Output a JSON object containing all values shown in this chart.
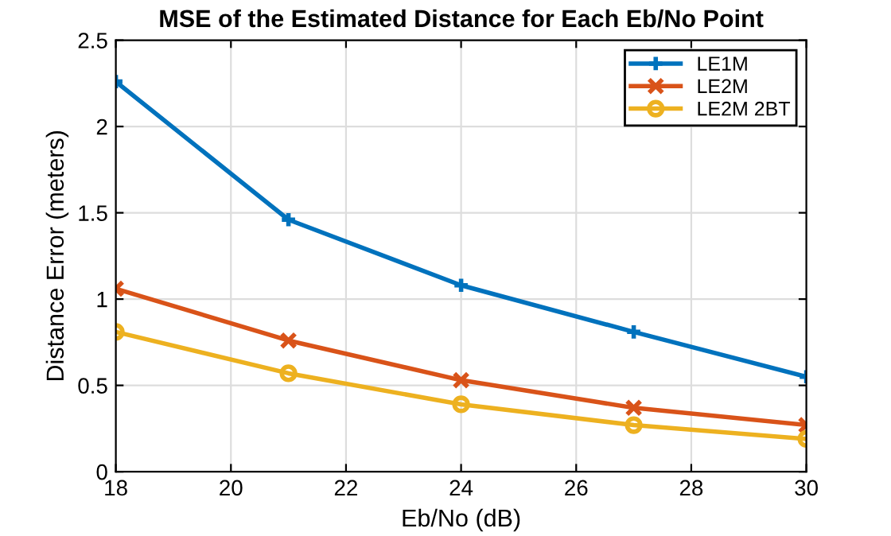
{
  "chart_data": {
    "type": "line",
    "title": "MSE of the Estimated Distance for Each Eb/No Point",
    "xlabel": "Eb/No (dB)",
    "ylabel": "Distance Error (meters)",
    "x": [
      18,
      21,
      24,
      27,
      30
    ],
    "series": [
      {
        "name": "LE1M",
        "color": "#0072bd",
        "marker": "cross",
        "values": [
          2.26,
          1.46,
          1.08,
          0.81,
          0.55
        ]
      },
      {
        "name": "LE2M",
        "color": "#d95319",
        "marker": "x",
        "values": [
          1.06,
          0.76,
          0.53,
          0.37,
          0.27
        ]
      },
      {
        "name": "LE2M 2BT",
        "color": "#edb120",
        "marker": "circle",
        "values": [
          0.81,
          0.57,
          0.39,
          0.27,
          0.19
        ]
      }
    ],
    "xlim": [
      18,
      30
    ],
    "xticks": [
      18,
      20,
      22,
      24,
      26,
      28,
      30
    ],
    "ylim": [
      0,
      2.5
    ],
    "yticks": [
      0,
      0.5,
      1,
      1.5,
      2,
      2.5
    ],
    "grid": true,
    "legend": "top right",
    "line_style": "solid"
  }
}
